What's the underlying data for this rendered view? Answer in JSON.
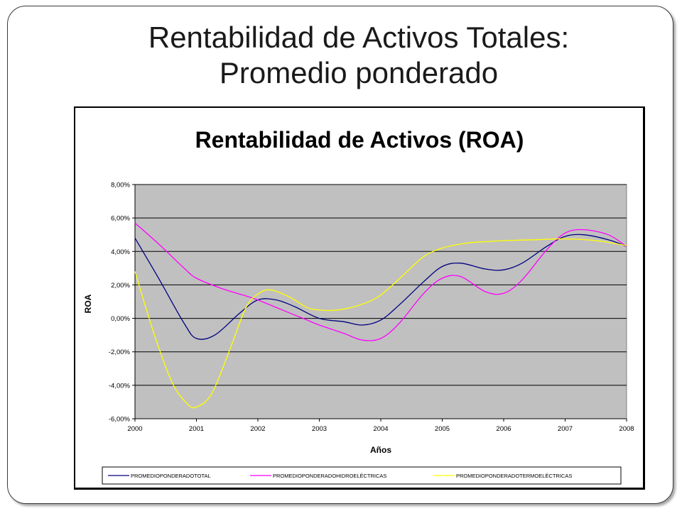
{
  "slide": {
    "title_line1": "Rentabilidad de Activos Totales:",
    "title_line2": "Promedio ponderado"
  },
  "chart_data": {
    "type": "line",
    "title": "Rentabilidad de Activos (ROA)",
    "xlabel": "Años",
    "ylabel": "ROA",
    "x": [
      2000,
      2001,
      2002,
      2003,
      2004,
      2005,
      2006,
      2007,
      2008
    ],
    "x_tick_labels": [
      "2000",
      "2001",
      "2002",
      "2003",
      "2004",
      "2005",
      "2006",
      "2007",
      "2008"
    ],
    "ylim": [
      -6,
      8
    ],
    "y_ticks": [
      8,
      6,
      4,
      2,
      0,
      -2,
      -4,
      -6
    ],
    "y_tick_labels": [
      "8,00%",
      "6,00%",
      "4,00%",
      "2,00%",
      "0,00%",
      "-2,00%",
      "-4,00%",
      "-6,00%"
    ],
    "grid": true,
    "plot_background": "#c0c0c0",
    "legend_position": "bottom",
    "series": [
      {
        "name": "PROMEDIOPONDERADOTOTAL",
        "color": "#000080",
        "x": [
          2000,
          2000.4,
          2000.8,
          2001,
          2001.3,
          2001.7,
          2002,
          2002.3,
          2002.6,
          2003,
          2003.4,
          2003.7,
          2004,
          2004.3,
          2004.7,
          2005,
          2005.3,
          2005.7,
          2006,
          2006.3,
          2006.7,
          2007,
          2007.3,
          2007.7,
          2008
        ],
        "y": [
          4.8,
          2.3,
          -0.3,
          -1.2,
          -1.0,
          0.3,
          1.1,
          1.1,
          0.7,
          0.0,
          -0.2,
          -0.4,
          -0.1,
          0.8,
          2.2,
          3.1,
          3.3,
          2.95,
          2.9,
          3.3,
          4.3,
          4.9,
          5.0,
          4.7,
          4.3
        ]
      },
      {
        "name": "PROMEDIOPONDERADOHIDROELÉCTRICAS",
        "color": "#ff00ff",
        "x": [
          2000,
          2000.4,
          2000.8,
          2001,
          2001.4,
          2001.8,
          2002,
          2002.4,
          2002.8,
          2003,
          2003.4,
          2003.7,
          2004,
          2004.3,
          2004.7,
          2005,
          2005.3,
          2005.7,
          2006,
          2006.3,
          2006.7,
          2007,
          2007.3,
          2007.7,
          2008
        ],
        "y": [
          5.7,
          4.4,
          3.0,
          2.4,
          1.8,
          1.35,
          1.1,
          0.5,
          -0.1,
          -0.4,
          -0.9,
          -1.3,
          -1.2,
          -0.3,
          1.5,
          2.4,
          2.5,
          1.6,
          1.5,
          2.3,
          4.1,
          5.1,
          5.3,
          5.0,
          4.3
        ]
      },
      {
        "name": "PROMEDIOPONDERADOTERMOELÉCTRICAS",
        "color": "#ffff00",
        "x": [
          2000,
          2000.3,
          2000.6,
          2000.85,
          2001,
          2001.25,
          2001.55,
          2001.8,
          2002,
          2002.2,
          2002.5,
          2002.8,
          2003,
          2003.3,
          2003.7,
          2004,
          2004.4,
          2004.7,
          2005,
          2005.4,
          2005.8,
          2006,
          2006.5,
          2007,
          2007.5,
          2008
        ],
        "y": [
          2.8,
          -0.8,
          -3.8,
          -5.1,
          -5.3,
          -4.5,
          -1.8,
          0.6,
          1.45,
          1.7,
          1.3,
          0.65,
          0.5,
          0.5,
          0.85,
          1.4,
          2.7,
          3.7,
          4.2,
          4.5,
          4.6,
          4.65,
          4.7,
          4.75,
          4.65,
          4.35
        ]
      }
    ]
  }
}
